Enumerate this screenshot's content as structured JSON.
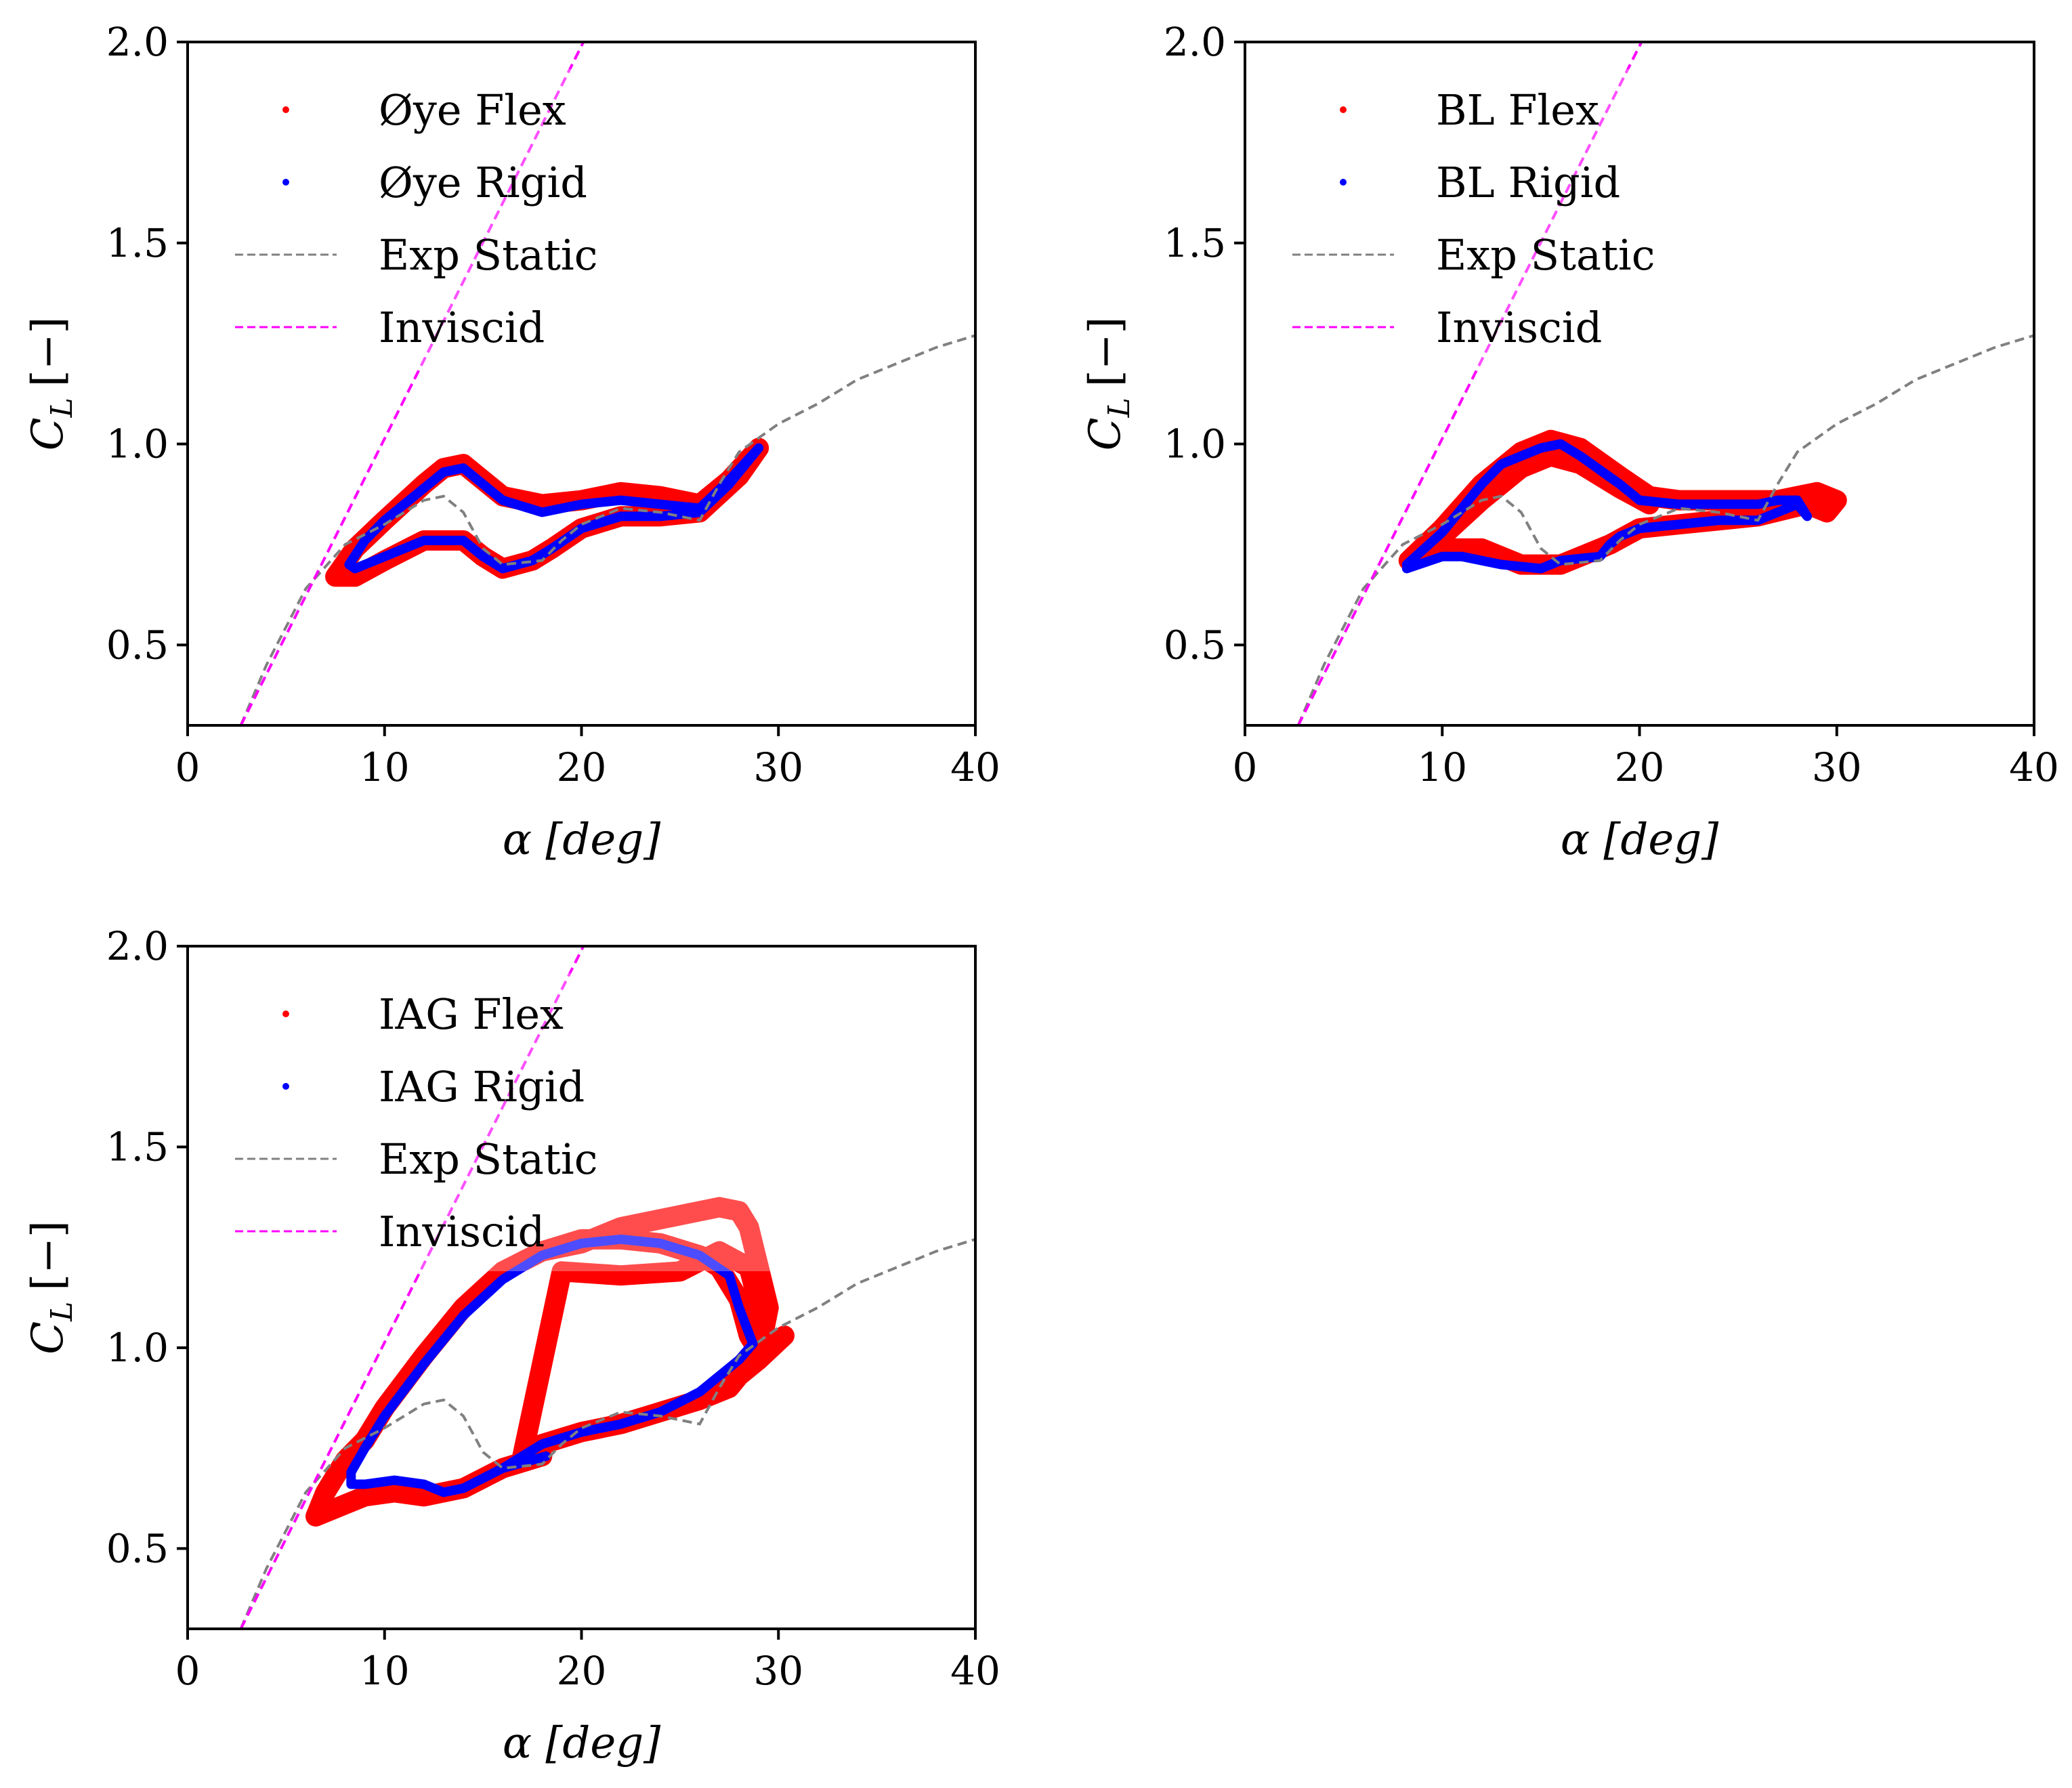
{
  "colors": {
    "flex": "#ff0000",
    "rigid": "#0000ff",
    "exp_static": "#808080",
    "inviscid": "#ff00ff"
  },
  "chart_data": [
    {
      "type": "line",
      "xlabel": "α [deg]",
      "ylabel": {
        "main": "C",
        "sub": "L",
        "unit": "[−]"
      },
      "xlim": [
        0,
        40
      ],
      "ylim": [
        0.3,
        2.0
      ],
      "xticks": [
        "0",
        "10",
        "20",
        "30",
        "40"
      ],
      "yticks": [
        "0.5",
        "1.0",
        "1.5",
        "2.0"
      ],
      "grid": false,
      "legend_position": "top-left",
      "series": [
        {
          "name": "Øye Flex",
          "style": "markers",
          "color": "#ff0000",
          "x": [
            7.5,
            8.5,
            10,
            12,
            13,
            14,
            15,
            16,
            18,
            20,
            22,
            24,
            26,
            27.5,
            29,
            28,
            26,
            24,
            22,
            20,
            18.5,
            17.5,
            16,
            15,
            14,
            12,
            10,
            8.5,
            7.5
          ],
          "y": [
            0.67,
            0.74,
            0.81,
            0.9,
            0.94,
            0.95,
            0.91,
            0.87,
            0.85,
            0.86,
            0.88,
            0.87,
            0.85,
            0.91,
            0.99,
            0.92,
            0.83,
            0.82,
            0.82,
            0.79,
            0.74,
            0.71,
            0.69,
            0.72,
            0.76,
            0.76,
            0.71,
            0.67,
            0.67
          ]
        },
        {
          "name": "Øye Rigid",
          "style": "markers",
          "color": "#0000ff",
          "x": [
            8.2,
            9,
            10,
            12,
            13,
            14,
            15,
            16,
            18,
            20,
            22,
            24,
            26,
            27.5,
            29,
            27.5,
            26,
            24,
            22,
            20,
            18.5,
            17.5,
            16,
            15,
            14,
            12,
            10,
            8.5,
            8.2
          ],
          "y": [
            0.7,
            0.76,
            0.81,
            0.89,
            0.93,
            0.94,
            0.9,
            0.86,
            0.83,
            0.85,
            0.86,
            0.85,
            0.84,
            0.91,
            0.99,
            0.9,
            0.83,
            0.82,
            0.82,
            0.79,
            0.74,
            0.71,
            0.69,
            0.72,
            0.76,
            0.76,
            0.72,
            0.69,
            0.7
          ]
        },
        {
          "name": "Exp Static",
          "style": "dashed",
          "color": "#808080",
          "x": [
            2.7,
            4,
            6,
            8,
            10,
            12,
            13,
            14,
            15,
            16,
            18,
            19,
            20,
            22,
            24,
            26,
            27,
            28,
            30,
            32,
            34,
            36,
            38,
            40
          ],
          "y": [
            0.3,
            0.45,
            0.64,
            0.75,
            0.8,
            0.86,
            0.87,
            0.83,
            0.74,
            0.7,
            0.71,
            0.76,
            0.8,
            0.84,
            0.83,
            0.81,
            0.9,
            0.98,
            1.05,
            1.1,
            1.16,
            1.2,
            1.24,
            1.27
          ]
        },
        {
          "name": "Inviscid",
          "style": "dashed",
          "color": "#ff00ff",
          "x": [
            2.7,
            20.1
          ],
          "y": [
            0.3,
            2.0
          ]
        }
      ]
    },
    {
      "type": "line",
      "xlabel": "α [deg]",
      "ylabel": {
        "main": "C",
        "sub": "L",
        "unit": "[−]"
      },
      "xlim": [
        0,
        40
      ],
      "ylim": [
        0.3,
        2.0
      ],
      "xticks": [
        "0",
        "10",
        "20",
        "30",
        "40"
      ],
      "yticks": [
        "0.5",
        "1.0",
        "1.5",
        "2.0"
      ],
      "grid": false,
      "legend_position": "top-left",
      "series": [
        {
          "name": "BL Flex",
          "style": "markers",
          "color": "#ff0000",
          "x": [
            8.3,
            10,
            12,
            14,
            15.5,
            17,
            19,
            20.5,
            22,
            24,
            27,
            29,
            30,
            29.5,
            28.5,
            26,
            24,
            22,
            20,
            18.5,
            17,
            16,
            14,
            12,
            10,
            8.3,
            10,
            12,
            14,
            15.5,
            17,
            19,
            20.5
          ],
          "y": [
            0.71,
            0.79,
            0.9,
            0.98,
            1.01,
            0.99,
            0.92,
            0.87,
            0.86,
            0.86,
            0.86,
            0.88,
            0.86,
            0.83,
            0.85,
            0.82,
            0.81,
            0.8,
            0.79,
            0.75,
            0.72,
            0.7,
            0.7,
            0.74,
            0.74,
            0.71,
            0.77,
            0.86,
            0.94,
            0.97,
            0.95,
            0.89,
            0.85
          ]
        },
        {
          "name": "BL Rigid",
          "style": "markers",
          "color": "#0000ff",
          "x": [
            8.2,
            10,
            12,
            13,
            15,
            16,
            17,
            19,
            20,
            22,
            24,
            26,
            27,
            28,
            28.5,
            28,
            27,
            26,
            24,
            22,
            20,
            19,
            18.5,
            18,
            16,
            15,
            13,
            11,
            10,
            8.2
          ],
          "y": [
            0.7,
            0.78,
            0.9,
            0.95,
            0.99,
            1.0,
            0.97,
            0.9,
            0.86,
            0.85,
            0.85,
            0.85,
            0.86,
            0.86,
            0.82,
            0.85,
            0.83,
            0.81,
            0.81,
            0.8,
            0.79,
            0.77,
            0.75,
            0.72,
            0.71,
            0.69,
            0.7,
            0.72,
            0.72,
            0.69
          ]
        },
        {
          "name": "Exp Static",
          "style": "dashed",
          "color": "#808080",
          "x": [
            2.7,
            4,
            6,
            8,
            10,
            12,
            13,
            14,
            15,
            16,
            18,
            19,
            20,
            22,
            24,
            26,
            27,
            28,
            30,
            32,
            34,
            36,
            38,
            40
          ],
          "y": [
            0.3,
            0.45,
            0.64,
            0.75,
            0.8,
            0.86,
            0.87,
            0.83,
            0.74,
            0.7,
            0.71,
            0.76,
            0.8,
            0.84,
            0.83,
            0.81,
            0.9,
            0.98,
            1.05,
            1.1,
            1.16,
            1.2,
            1.24,
            1.27
          ]
        },
        {
          "name": "Inviscid",
          "style": "dashed",
          "color": "#ff00ff",
          "x": [
            2.7,
            20.1
          ],
          "y": [
            0.3,
            2.0
          ]
        }
      ]
    },
    {
      "type": "line",
      "xlabel": "α [deg]",
      "ylabel": {
        "main": "C",
        "sub": "L",
        "unit": "[−]"
      },
      "xlim": [
        0,
        40
      ],
      "ylim": [
        0.3,
        2.0
      ],
      "xticks": [
        "0",
        "10",
        "20",
        "30",
        "40"
      ],
      "yticks": [
        "0.5",
        "1.0",
        "1.5",
        "2.0"
      ],
      "grid": false,
      "legend_position": "top-left",
      "series": [
        {
          "name": "IAG Flex",
          "style": "markers",
          "color": "#ff0000",
          "x": [
            18,
            16,
            14,
            12,
            10.5,
            9,
            7.5,
            6.5,
            7,
            8,
            9,
            10,
            12,
            14,
            16,
            18,
            20,
            22,
            24,
            26,
            27,
            28,
            28.5,
            29,
            30.3,
            29,
            28,
            27.5,
            26,
            24,
            22,
            20,
            18,
            17,
            19,
            22,
            25,
            27,
            28.5,
            29.3,
            29.5,
            28.5,
            28,
            27,
            25,
            22,
            20,
            18
          ],
          "y": [
            0.73,
            0.7,
            0.65,
            0.63,
            0.64,
            0.63,
            0.6,
            0.58,
            0.64,
            0.72,
            0.77,
            0.85,
            0.98,
            1.1,
            1.19,
            1.24,
            1.27,
            1.27,
            1.26,
            1.23,
            1.2,
            1.12,
            1.03,
            0.99,
            1.03,
            0.97,
            0.93,
            0.9,
            0.87,
            0.84,
            0.81,
            0.79,
            0.76,
            0.73,
            1.19,
            1.18,
            1.19,
            1.24,
            1.2,
            1.05,
            1.1,
            1.3,
            1.34,
            1.35,
            1.33,
            1.3,
            1.26,
            1.24
          ]
        },
        {
          "name": "IAG Rigid",
          "style": "markers",
          "color": "#0000ff",
          "x": [
            18.2,
            16,
            14,
            13,
            12,
            10.5,
            9,
            8.3,
            8.3,
            9,
            10,
            12,
            14,
            16,
            18,
            20,
            22,
            24,
            26,
            27.5,
            28,
            28.7,
            28,
            26,
            24,
            22,
            20,
            18,
            16
          ],
          "y": [
            0.73,
            0.7,
            0.65,
            0.64,
            0.66,
            0.67,
            0.66,
            0.66,
            0.69,
            0.75,
            0.83,
            0.96,
            1.08,
            1.17,
            1.23,
            1.26,
            1.27,
            1.26,
            1.23,
            1.18,
            1.1,
            1.01,
            0.97,
            0.89,
            0.84,
            0.81,
            0.79,
            0.76,
            0.7
          ]
        },
        {
          "name": "Exp Static",
          "style": "dashed",
          "color": "#808080",
          "x": [
            2.7,
            4,
            6,
            8,
            10,
            12,
            13,
            14,
            15,
            16,
            18,
            19,
            20,
            22,
            24,
            26,
            27,
            28,
            30,
            32,
            34,
            36,
            38,
            40
          ],
          "y": [
            0.3,
            0.45,
            0.64,
            0.75,
            0.8,
            0.86,
            0.87,
            0.83,
            0.74,
            0.7,
            0.71,
            0.76,
            0.8,
            0.84,
            0.83,
            0.81,
            0.9,
            0.98,
            1.05,
            1.1,
            1.16,
            1.2,
            1.24,
            1.27
          ]
        },
        {
          "name": "Inviscid",
          "style": "dashed",
          "color": "#ff00ff",
          "x": [
            2.7,
            20.1
          ],
          "y": [
            0.3,
            2.0
          ]
        }
      ]
    }
  ]
}
